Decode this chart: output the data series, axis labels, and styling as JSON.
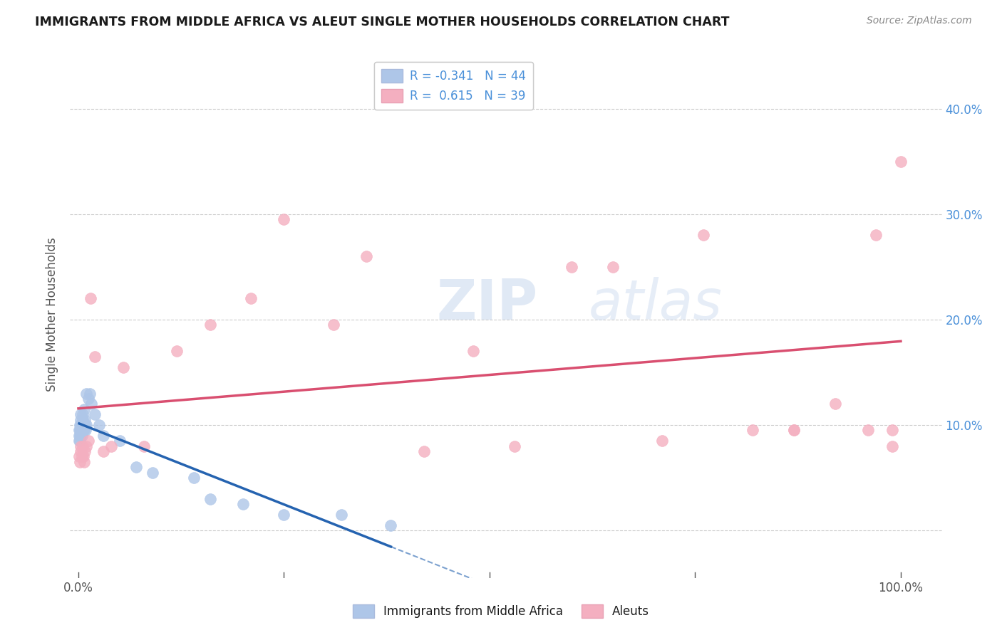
{
  "title": "IMMIGRANTS FROM MIDDLE AFRICA VS ALEUT SINGLE MOTHER HOUSEHOLDS CORRELATION CHART",
  "source": "Source: ZipAtlas.com",
  "ylabel": "Single Mother Households",
  "yticks": [
    0.0,
    0.1,
    0.2,
    0.3,
    0.4
  ],
  "ytick_labels_right": [
    "",
    "10.0%",
    "20.0%",
    "30.0%",
    "40.0%"
  ],
  "xlim": [
    -0.01,
    1.05
  ],
  "ylim": [
    -0.045,
    0.455
  ],
  "blue_scatter_x": [
    0.001,
    0.001,
    0.001,
    0.002,
    0.002,
    0.002,
    0.002,
    0.003,
    0.003,
    0.003,
    0.003,
    0.003,
    0.004,
    0.004,
    0.004,
    0.005,
    0.005,
    0.005,
    0.005,
    0.006,
    0.006,
    0.007,
    0.007,
    0.007,
    0.008,
    0.008,
    0.009,
    0.01,
    0.01,
    0.012,
    0.014,
    0.016,
    0.02,
    0.025,
    0.03,
    0.05,
    0.07,
    0.09,
    0.14,
    0.16,
    0.2,
    0.25,
    0.32,
    0.38
  ],
  "blue_scatter_y": [
    0.085,
    0.09,
    0.095,
    0.085,
    0.09,
    0.095,
    0.1,
    0.09,
    0.095,
    0.1,
    0.105,
    0.11,
    0.09,
    0.095,
    0.1,
    0.095,
    0.1,
    0.105,
    0.11,
    0.095,
    0.1,
    0.095,
    0.1,
    0.115,
    0.1,
    0.105,
    0.095,
    0.1,
    0.13,
    0.125,
    0.13,
    0.12,
    0.11,
    0.1,
    0.09,
    0.085,
    0.06,
    0.055,
    0.05,
    0.03,
    0.025,
    0.015,
    0.015,
    0.005
  ],
  "pink_scatter_x": [
    0.001,
    0.002,
    0.003,
    0.003,
    0.004,
    0.005,
    0.006,
    0.007,
    0.008,
    0.01,
    0.012,
    0.015,
    0.02,
    0.03,
    0.04,
    0.055,
    0.08,
    0.12,
    0.16,
    0.21,
    0.25,
    0.31,
    0.35,
    0.42,
    0.48,
    0.53,
    0.6,
    0.65,
    0.71,
    0.76,
    0.82,
    0.87,
    0.87,
    0.92,
    0.96,
    0.97,
    0.99,
    0.99,
    1.0
  ],
  "pink_scatter_y": [
    0.07,
    0.065,
    0.075,
    0.08,
    0.07,
    0.08,
    0.07,
    0.065,
    0.075,
    0.08,
    0.085,
    0.22,
    0.165,
    0.075,
    0.08,
    0.155,
    0.08,
    0.17,
    0.195,
    0.22,
    0.295,
    0.195,
    0.26,
    0.075,
    0.17,
    0.08,
    0.25,
    0.25,
    0.085,
    0.28,
    0.095,
    0.095,
    0.095,
    0.12,
    0.095,
    0.28,
    0.095,
    0.08,
    0.35
  ],
  "blue_color": "#aec6e8",
  "pink_color": "#f4afc0",
  "blue_line_color": "#2563b0",
  "pink_line_color": "#d94f70",
  "watermark_text": "ZIPatlas",
  "background_color": "#ffffff",
  "grid_color": "#cccccc",
  "title_color": "#1a1a1a",
  "right_axis_color": "#4a90d9",
  "axis_label_color": "#555555"
}
